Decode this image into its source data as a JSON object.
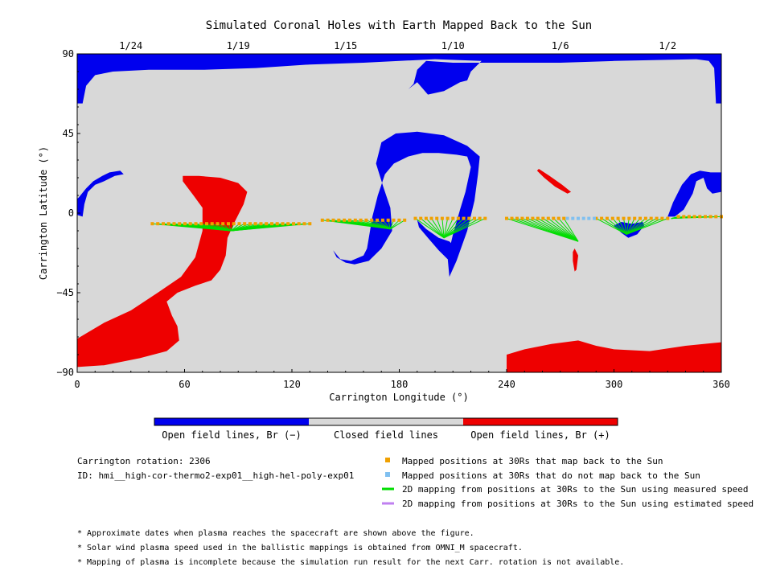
{
  "chart_data": {
    "type": "scatter",
    "title": "Simulated Coronal Holes with Earth Mapped Back to the Sun",
    "xlabel": "Carrington Longitude (°)",
    "ylabel": "Carrington Latitude (°)",
    "xlim": [
      0,
      360
    ],
    "ylim": [
      -90,
      90
    ],
    "x_ticks": [
      0,
      60,
      120,
      180,
      240,
      300,
      360
    ],
    "y_ticks": [
      -90,
      -45,
      0,
      45,
      90
    ],
    "top_axis": {
      "labels": [
        "1/24",
        "1/19",
        "1/15",
        "1/10",
        "1/6",
        "1/2"
      ],
      "positions": [
        30,
        90,
        150,
        210,
        270,
        330
      ]
    },
    "colorbar": {
      "colors": [
        "#0000ee",
        "#d8d8d8",
        "#ee0000"
      ],
      "labels": [
        "Open field lines, Br (−)",
        "Closed field lines",
        "Open field lines, Br (+)"
      ]
    },
    "legend": {
      "placement": "bottom-right",
      "items": [
        {
          "label": "Mapped positions at 30Rs that map back to the Sun",
          "color": "#f0a000",
          "marker": "square"
        },
        {
          "label": "Mapped positions at 30Rs that do not map back to the Sun",
          "color": "#80c0f0",
          "marker": "square"
        },
        {
          "label": "2D mapping from positions at 30Rs to the Sun using measured speed",
          "color": "#00dd00",
          "marker": "line"
        },
        {
          "label": "2D mapping from positions at 30Rs to the Sun using estimated speed",
          "color": "#c080f0",
          "marker": "line"
        }
      ]
    },
    "info": {
      "rotation": "Carrington rotation: 2306",
      "run_id": "ID: hmi__high-cor-thermo2-exp01__high-hel-poly-exp01"
    },
    "notes": [
      "* Approximate dates when plasma reaches the spacecraft are shown above the figure.",
      "* Solar wind plasma speed used in the ballistic mappings is obtained from OMNI_M spacecraft.",
      "* Mapping of plasma is incomplete because the simulation run result for the next Carr. rotation is not available."
    ],
    "open_field_regions": [
      {
        "polarity": "negative",
        "points": [
          [
            0,
            90
          ],
          [
            360,
            90
          ],
          [
            360,
            62
          ],
          [
            357,
            62
          ],
          [
            356,
            82
          ],
          [
            353,
            86
          ],
          [
            346,
            87
          ],
          [
            300,
            86
          ],
          [
            270,
            85
          ],
          [
            240,
            85
          ],
          [
            210,
            85
          ],
          [
            195,
            86
          ],
          [
            190,
            81
          ],
          [
            188,
            73
          ],
          [
            185,
            70
          ],
          [
            190,
            74
          ],
          [
            196,
            67
          ],
          [
            205,
            69
          ],
          [
            214,
            74
          ],
          [
            218,
            75
          ],
          [
            220,
            80
          ],
          [
            226,
            86
          ],
          [
            200,
            87
          ],
          [
            160,
            85
          ],
          [
            130,
            84
          ],
          [
            100,
            82
          ],
          [
            70,
            81
          ],
          [
            40,
            81
          ],
          [
            20,
            80
          ],
          [
            10,
            78
          ],
          [
            5,
            72
          ],
          [
            3,
            62
          ],
          [
            0,
            62
          ]
        ]
      },
      {
        "polarity": "negative",
        "points": [
          [
            0,
            -1
          ],
          [
            3,
            -2
          ],
          [
            4,
            5
          ],
          [
            6,
            12
          ],
          [
            10,
            16
          ],
          [
            15,
            18
          ],
          [
            21,
            21
          ],
          [
            26,
            22
          ],
          [
            24,
            24
          ],
          [
            18,
            23
          ],
          [
            14,
            21
          ],
          [
            9,
            18
          ],
          [
            5,
            14
          ],
          [
            1,
            9
          ],
          [
            0,
            8
          ]
        ]
      },
      {
        "polarity": "negative",
        "points": [
          [
            160,
            -24
          ],
          [
            162,
            -20
          ],
          [
            165,
            -2
          ],
          [
            168,
            10
          ],
          [
            172,
            22
          ],
          [
            177,
            28
          ],
          [
            185,
            32
          ],
          [
            193,
            34
          ],
          [
            202,
            34
          ],
          [
            212,
            33
          ],
          [
            218,
            32
          ],
          [
            220,
            26
          ],
          [
            217,
            12
          ],
          [
            214,
            2
          ],
          [
            210,
            -12
          ],
          [
            207,
            -25
          ],
          [
            208,
            -36
          ],
          [
            212,
            -27
          ],
          [
            218,
            -10
          ],
          [
            222,
            7
          ],
          [
            224,
            22
          ],
          [
            225,
            32
          ],
          [
            218,
            38
          ],
          [
            205,
            44
          ],
          [
            190,
            46
          ],
          [
            178,
            45
          ],
          [
            170,
            40
          ],
          [
            167,
            28
          ],
          [
            171,
            15
          ],
          [
            175,
            3
          ],
          [
            176,
            -10
          ],
          [
            170,
            -20
          ],
          [
            163,
            -27
          ],
          [
            155,
            -29
          ],
          [
            150,
            -28
          ],
          [
            145,
            -25
          ],
          [
            143,
            -21
          ],
          [
            147,
            -26
          ],
          [
            153,
            -27
          ]
        ]
      },
      {
        "polarity": "negative",
        "points": [
          [
            190,
            -4
          ],
          [
            195,
            -9
          ],
          [
            202,
            -14
          ],
          [
            208,
            -16
          ],
          [
            211,
            -19
          ],
          [
            211,
            -24
          ],
          [
            207,
            -26
          ],
          [
            202,
            -21
          ],
          [
            196,
            -14
          ],
          [
            191,
            -8
          ]
        ]
      },
      {
        "polarity": "negative",
        "points": [
          [
            300,
            -7
          ],
          [
            304,
            -11
          ],
          [
            308,
            -14
          ],
          [
            313,
            -12
          ],
          [
            317,
            -7
          ],
          [
            316,
            -5
          ],
          [
            310,
            -6
          ],
          [
            304,
            -5
          ]
        ]
      },
      {
        "polarity": "negative",
        "points": [
          [
            330,
            -2
          ],
          [
            333,
            6
          ],
          [
            338,
            16
          ],
          [
            343,
            22
          ],
          [
            348,
            24
          ],
          [
            354,
            23
          ],
          [
            360,
            23
          ],
          [
            360,
            12
          ],
          [
            355,
            11
          ],
          [
            352,
            14
          ],
          [
            350,
            20
          ],
          [
            346,
            18
          ],
          [
            344,
            11
          ],
          [
            339,
            2
          ],
          [
            334,
            -2
          ]
        ]
      },
      {
        "polarity": "positive",
        "points": [
          [
            0,
            -71
          ],
          [
            5,
            -68
          ],
          [
            15,
            -62
          ],
          [
            30,
            -55
          ],
          [
            45,
            -45
          ],
          [
            58,
            -36
          ],
          [
            66,
            -25
          ],
          [
            70,
            -10
          ],
          [
            70,
            3
          ],
          [
            65,
            10
          ],
          [
            59,
            18
          ],
          [
            59,
            21
          ],
          [
            68,
            21
          ],
          [
            80,
            20
          ],
          [
            90,
            17
          ],
          [
            95,
            12
          ],
          [
            93,
            5
          ],
          [
            88,
            -5
          ],
          [
            84,
            -14
          ],
          [
            83,
            -24
          ],
          [
            80,
            -32
          ],
          [
            75,
            -38
          ],
          [
            66,
            -41
          ],
          [
            56,
            -45
          ],
          [
            50,
            -50
          ],
          [
            53,
            -58
          ],
          [
            56,
            -64
          ],
          [
            57,
            -72
          ],
          [
            50,
            -78
          ],
          [
            35,
            -82
          ],
          [
            15,
            -86
          ],
          [
            0,
            -87
          ]
        ]
      },
      {
        "polarity": "positive",
        "points": [
          [
            258,
            25
          ],
          [
            264,
            21
          ],
          [
            271,
            16
          ],
          [
            276,
            12
          ],
          [
            274,
            11
          ],
          [
            267,
            15
          ],
          [
            261,
            20
          ],
          [
            257,
            24
          ]
        ]
      },
      {
        "polarity": "positive",
        "points": [
          [
            278,
            -20
          ],
          [
            280,
            -24
          ],
          [
            279,
            -32
          ],
          [
            278,
            -33
          ],
          [
            277,
            -27
          ],
          [
            277,
            -22
          ]
        ]
      },
      {
        "polarity": "positive",
        "points": [
          [
            240,
            -80
          ],
          [
            250,
            -77
          ],
          [
            265,
            -74
          ],
          [
            280,
            -72
          ],
          [
            290,
            -75
          ],
          [
            300,
            -77
          ],
          [
            320,
            -78
          ],
          [
            340,
            -75
          ],
          [
            360,
            -73
          ],
          [
            360,
            -90
          ],
          [
            240,
            -90
          ]
        ]
      }
    ],
    "mapping_clusters": [
      {
        "speed": "measured",
        "target": [
          86,
          -10
        ],
        "x_start": 42,
        "x_end": 130,
        "y": -6
      },
      {
        "speed": "measured",
        "target": [
          175,
          -9
        ],
        "x_start": 137,
        "x_end": 183,
        "y": -4
      },
      {
        "speed": "measured",
        "target": [
          205,
          -14
        ],
        "x_start": 189,
        "x_end": 228,
        "y": -3
      },
      {
        "speed": "measured",
        "target": [
          280,
          -16
        ],
        "x_start": 240,
        "x_end": 272,
        "y": -3
      },
      {
        "speed": "measured",
        "target": [
          307,
          -12
        ],
        "x_start": 290,
        "x_end": 330,
        "y": -3
      },
      {
        "speed": "measured",
        "target": [
          332,
          -3
        ],
        "x_start": 336,
        "x_end": 360,
        "y": -2
      }
    ],
    "unmapped_positions": {
      "x_start": 274,
      "x_end": 290,
      "y": -3
    }
  }
}
